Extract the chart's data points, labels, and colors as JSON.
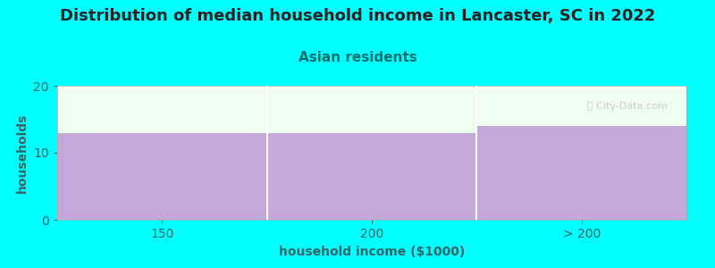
{
  "title": "Distribution of median household income in Lancaster, SC in 2022",
  "subtitle": "Asian residents",
  "xlabel": "household income ($1000)",
  "ylabel": "households",
  "bar_color": "#c4a8d8",
  "plot_bg_color": "#eefff0",
  "fig_bg_color": "#00ffff",
  "title_color": "#222222",
  "subtitle_color": "#007070",
  "axis_label_color": "#336666",
  "tick_label_color": "#336666",
  "watermark": "Ⓣ City-Data.com",
  "x_tick_labels": [
    "150",
    "200",
    "> 200"
  ],
  "x_tick_positions": [
    0.5,
    1.5,
    2.5
  ],
  "values": [
    13,
    13,
    14
  ],
  "ylim": [
    0,
    20
  ],
  "yticks": [
    0,
    10,
    20
  ],
  "title_fontsize": 13,
  "subtitle_fontsize": 11,
  "label_fontsize": 10
}
